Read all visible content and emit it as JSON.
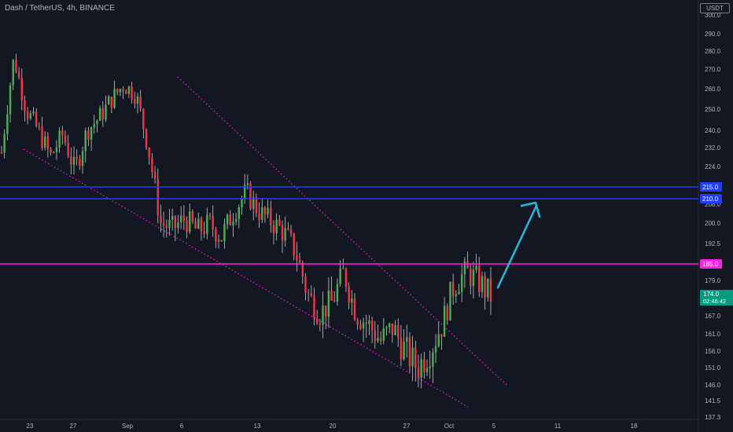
{
  "header": {
    "title": "Dash / TetherUS, 4h, BINANCE",
    "currency": "USDT"
  },
  "price_tag": {
    "value": "174.0",
    "countdown": "02:46:42"
  },
  "chart_data": {
    "type": "candlestick",
    "title": "Dash / TetherUS, 4h, BINANCE",
    "xlabel": "",
    "ylabel": "",
    "y_ticks": [
      "300.0",
      "290.0",
      "280.0",
      "270.0",
      "260.0",
      "250.0",
      "240.0",
      "232.0",
      "224.0",
      "208.0",
      "200.0",
      "192.5",
      "179.0",
      "167.0",
      "161.0",
      "156.0",
      "151.0",
      "146.0",
      "141.5",
      "137.3"
    ],
    "x_ticks": [
      "23",
      "27",
      "Sep",
      "6",
      "13",
      "20",
      "27",
      "Oct",
      "5",
      "11",
      "18"
    ],
    "price_series": [
      [
        "23",
        230
      ],
      [
        "24",
        276
      ],
      [
        "25",
        250
      ],
      [
        "26",
        240
      ],
      [
        "27",
        228
      ],
      [
        "29",
        238
      ],
      [
        "Sep",
        222
      ],
      [
        "2",
        240
      ],
      [
        "3",
        246
      ],
      [
        "4",
        255
      ],
      [
        "5",
        262
      ],
      [
        "6",
        257
      ],
      [
        "7",
        232
      ],
      [
        "8",
        200
      ],
      [
        "9",
        198
      ],
      [
        "10",
        202
      ],
      [
        "11",
        197
      ],
      [
        "12",
        200
      ],
      [
        "13",
        195
      ],
      [
        "14",
        205
      ],
      [
        "15",
        213
      ],
      [
        "16",
        205
      ],
      [
        "17",
        201
      ],
      [
        "18",
        197
      ],
      [
        "19",
        190
      ],
      [
        "20",
        175
      ],
      [
        "21",
        168
      ],
      [
        "22",
        172
      ],
      [
        "23",
        182
      ],
      [
        "24",
        168
      ],
      [
        "25",
        164
      ],
      [
        "26",
        159
      ],
      [
        "27",
        163
      ],
      [
        "28",
        156
      ],
      [
        "29",
        151
      ],
      [
        "30",
        156
      ],
      [
        "Oct",
        164
      ],
      [
        "2",
        178
      ],
      [
        "3",
        182
      ],
      [
        "4",
        179
      ],
      [
        "5",
        174
      ]
    ],
    "horizontal_levels": [
      {
        "label": "215.0",
        "value": 215.0,
        "color": "#1e3dff"
      },
      {
        "label": "210.0",
        "value": 210.0,
        "color": "#1e3dff"
      },
      {
        "label": "185.0",
        "value": 185.0,
        "color": "#ff1ee6"
      }
    ],
    "last_price": 174.0,
    "colors": {
      "up": "#26a69a",
      "down": "#ef5350",
      "candle_green": "#4caf50",
      "candle_red": "#f23645",
      "trend": "#ff1ee6",
      "arrow": "#2ab6d6"
    }
  }
}
